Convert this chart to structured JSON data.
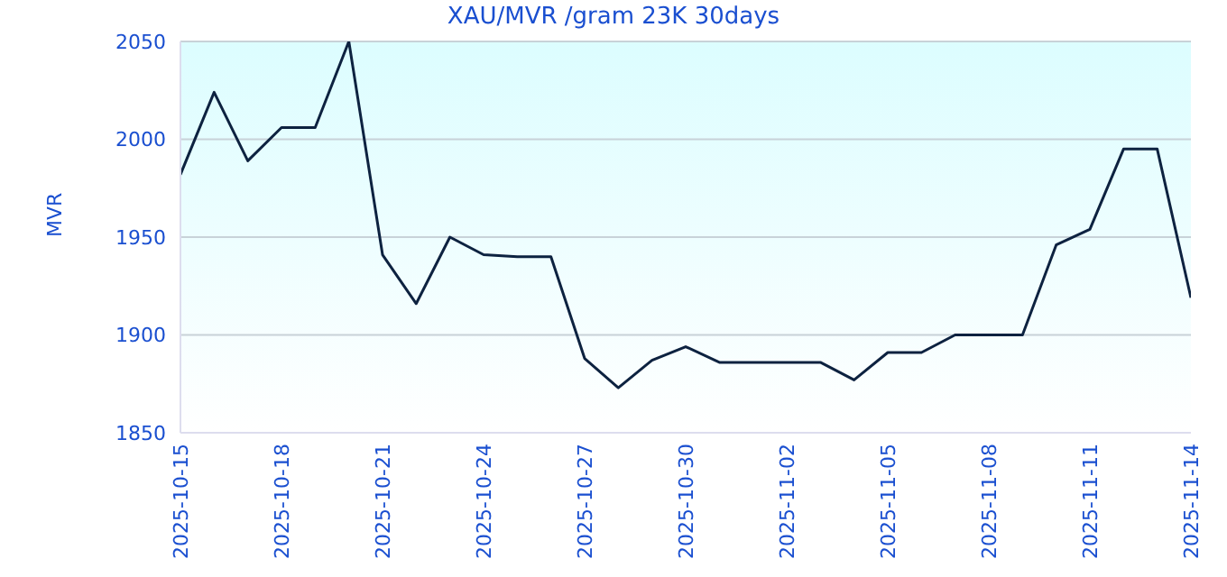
{
  "chart_data": {
    "type": "line",
    "title": "XAU/MVR /gram 23K 30days",
    "ylabel": "MVR",
    "x": [
      "2025-10-15",
      "2025-10-16",
      "2025-10-17",
      "2025-10-18",
      "2025-10-19",
      "2025-10-20",
      "2025-10-21",
      "2025-10-22",
      "2025-10-23",
      "2025-10-24",
      "2025-10-25",
      "2025-10-26",
      "2025-10-27",
      "2025-10-28",
      "2025-10-29",
      "2025-10-30",
      "2025-10-31",
      "2025-11-01",
      "2025-11-02",
      "2025-11-03",
      "2025-11-04",
      "2025-11-05",
      "2025-11-06",
      "2025-11-07",
      "2025-11-08",
      "2025-11-09",
      "2025-11-10",
      "2025-11-11",
      "2025-11-12",
      "2025-11-13",
      "2025-11-14"
    ],
    "series": [
      {
        "color": "#0d2240",
        "values": [
          1982,
          2024,
          1989,
          2006,
          2006,
          2050,
          1941,
          1916,
          1950,
          1941,
          1940,
          1940,
          1888,
          1873,
          1887,
          1894,
          1886,
          1886,
          1886,
          1886,
          1877,
          1891,
          1891,
          1900,
          1900,
          1900,
          1946,
          1954,
          1995,
          1995,
          1919
        ]
      }
    ],
    "xlim": [
      "2025-10-15",
      "2025-11-14"
    ],
    "xticks": [
      "2025-10-15",
      "2025-10-18",
      "2025-10-21",
      "2025-10-24",
      "2025-10-27",
      "2025-10-30",
      "2025-11-02",
      "2025-11-05",
      "2025-11-08",
      "2025-11-11",
      "2025-11-14"
    ],
    "ylim": [
      1850,
      2050
    ],
    "yticks": [
      1850,
      1900,
      1950,
      2000,
      2050
    ],
    "grid": "y",
    "legend": false,
    "marker": "none",
    "line_style": "solid"
  }
}
